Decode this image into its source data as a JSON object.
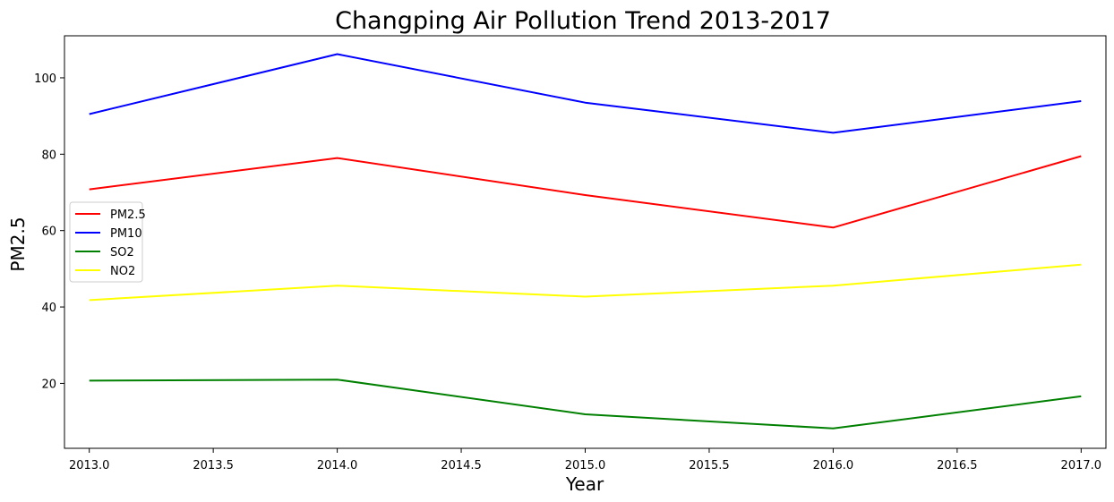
{
  "chart_data": {
    "type": "line",
    "title": "Changping Air Pollution Trend 2013-2017",
    "xlabel": "Year",
    "ylabel": "PM2.5",
    "x": [
      2013,
      2014,
      2015,
      2016,
      2017
    ],
    "xlim": [
      2012.9,
      2017.1
    ],
    "ylim": [
      3,
      111
    ],
    "xticks": [
      2013.0,
      2013.5,
      2014.0,
      2014.5,
      2015.0,
      2015.5,
      2016.0,
      2016.5,
      2017.0
    ],
    "xtick_labels": [
      "2013.0",
      "2013.5",
      "2014.0",
      "2014.5",
      "2015.0",
      "2015.5",
      "2016.0",
      "2016.5",
      "2017.0"
    ],
    "yticks": [
      20,
      40,
      60,
      80,
      100
    ],
    "ytick_labels": [
      "20",
      "40",
      "60",
      "80",
      "100"
    ],
    "grid": false,
    "legend_position": "center-left",
    "series": [
      {
        "name": "PM2.5",
        "color": "#ff0000",
        "values": [
          70.8,
          79.0,
          69.3,
          60.8,
          79.5
        ]
      },
      {
        "name": "PM10",
        "color": "#0000ff",
        "values": [
          90.5,
          106.2,
          93.5,
          85.6,
          93.9
        ]
      },
      {
        "name": "SO2",
        "color": "#008000",
        "values": [
          20.7,
          21.0,
          11.9,
          8.2,
          16.6
        ]
      },
      {
        "name": "NO2",
        "color": "#ffff00",
        "values": [
          41.8,
          45.6,
          42.7,
          45.6,
          51.1
        ]
      }
    ]
  }
}
